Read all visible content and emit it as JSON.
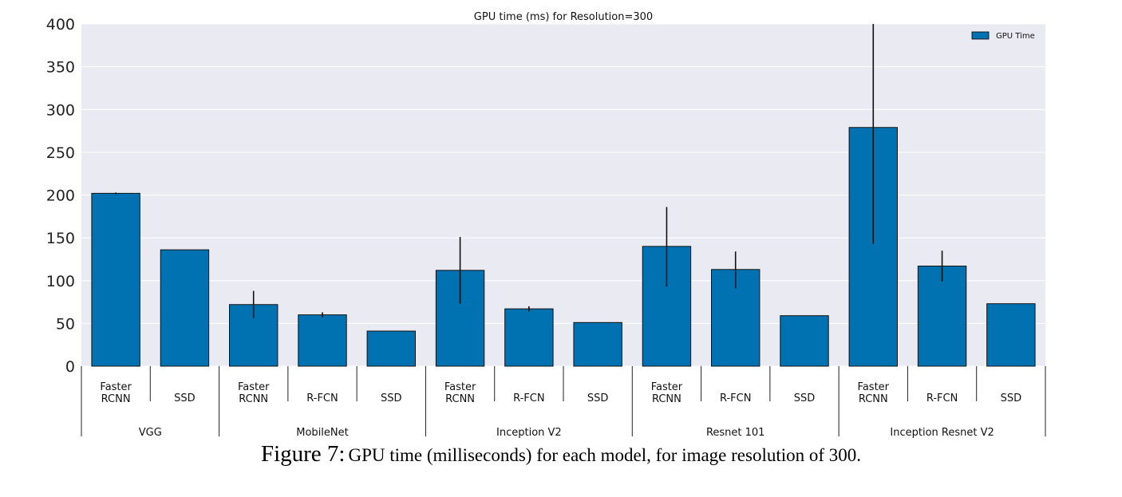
{
  "chart_data": {
    "type": "bar",
    "title": "GPU time (ms) for Resolution=300",
    "ylim": [
      0,
      400
    ],
    "yticks": [
      0,
      50,
      100,
      150,
      200,
      250,
      300,
      350,
      400
    ],
    "grid": true,
    "legend": {
      "position": "top-right",
      "entries": [
        "GPU Time"
      ]
    },
    "series": [
      {
        "name": "GPU Time",
        "color": "#0072b2",
        "values": [
          202,
          136,
          72,
          60,
          41,
          112,
          67,
          51,
          140,
          113,
          59,
          279,
          117,
          73
        ],
        "error_low": [
          201,
          136,
          56,
          57,
          41,
          73,
          64,
          51,
          93,
          91,
          59,
          143,
          99,
          73
        ],
        "error_high": [
          203,
          136,
          88,
          63,
          41,
          151,
          70,
          51,
          186,
          134,
          59,
          400,
          135,
          73
        ]
      }
    ],
    "categories": [
      [
        "Faster",
        "RCNN"
      ],
      [
        "SSD"
      ],
      [
        "Faster",
        "RCNN"
      ],
      [
        "R-FCN"
      ],
      [
        "SSD"
      ],
      [
        "Faster",
        "RCNN"
      ],
      [
        "R-FCN"
      ],
      [
        "SSD"
      ],
      [
        "Faster",
        "RCNN"
      ],
      [
        "R-FCN"
      ],
      [
        "SSD"
      ],
      [
        "Faster",
        "RCNN"
      ],
      [
        "R-FCN"
      ],
      [
        "SSD"
      ]
    ],
    "groups": [
      {
        "name": "VGG",
        "count": 2
      },
      {
        "name": "MobileNet",
        "count": 3
      },
      {
        "name": "Inception V2",
        "count": 3
      },
      {
        "name": "Resnet 101",
        "count": 3
      },
      {
        "name": "Inception Resnet V2",
        "count": 3
      }
    ]
  },
  "caption": {
    "label": "Figure 7:",
    "text": "GPU time (milliseconds) for each model, for image resolution of 300."
  }
}
